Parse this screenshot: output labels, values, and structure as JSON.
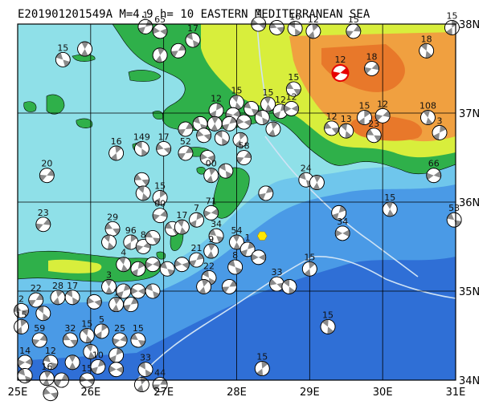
{
  "title": "E201901201549A M=4.9 h= 10 EASTERN MEDITERRANEAN SEA",
  "lon_labels": [
    "25E",
    "26E",
    "27E",
    "28E",
    "29E",
    "30E",
    "31E"
  ],
  "lat_labels": [
    "38N",
    "37N",
    "36N",
    "35N",
    "34N"
  ],
  "bounds": {
    "lon_min": 25,
    "lon_max": 31,
    "lat_min": 34,
    "lat_max": 38
  },
  "colors": {
    "deep_sea": "#2f6fd6",
    "mid_sea": "#4a9ae6",
    "shelf_sea": "#6fc6ec",
    "coast_sea": "#8fe0e8",
    "lowland": "#2fb04a",
    "hill": "#d8ee3c",
    "highland": "#f0a040",
    "mountain": "#e8782a",
    "event_highlight": "#e60000",
    "grid": "#000000",
    "plate_boundary": "#cfe3f5"
  },
  "main_event": {
    "lon": 29.42,
    "lat": 37.45,
    "depth": "12"
  },
  "epicenter_star": {
    "lon": 28.35,
    "lat": 35.62
  },
  "mechanisms": [
    {
      "lon": 25.62,
      "lat": 37.6,
      "depth": "15"
    },
    {
      "lon": 25.92,
      "lat": 37.72,
      "depth": ""
    },
    {
      "lon": 26.75,
      "lat": 37.97,
      "depth": "1"
    },
    {
      "lon": 26.95,
      "lat": 37.92,
      "depth": "65"
    },
    {
      "lon": 27.4,
      "lat": 37.82,
      "depth": "17"
    },
    {
      "lon": 26.95,
      "lat": 37.65,
      "depth": ""
    },
    {
      "lon": 27.2,
      "lat": 37.7,
      "depth": ""
    },
    {
      "lon": 28.3,
      "lat": 38.0,
      "depth": "1"
    },
    {
      "lon": 28.8,
      "lat": 37.95,
      "depth": "16"
    },
    {
      "lon": 29.05,
      "lat": 37.92,
      "depth": "12"
    },
    {
      "lon": 29.6,
      "lat": 37.92,
      "depth": "15"
    },
    {
      "lon": 28.55,
      "lat": 37.96,
      "depth": ""
    },
    {
      "lon": 30.6,
      "lat": 37.7,
      "depth": "18"
    },
    {
      "lon": 30.95,
      "lat": 37.96,
      "depth": "15"
    },
    {
      "lon": 29.85,
      "lat": 37.5,
      "depth": "18"
    },
    {
      "lon": 28.78,
      "lat": 37.27,
      "depth": "15"
    },
    {
      "lon": 28.0,
      "lat": 37.12,
      "depth": "15"
    },
    {
      "lon": 27.72,
      "lat": 37.03,
      "depth": "12"
    },
    {
      "lon": 27.95,
      "lat": 36.98,
      "depth": ""
    },
    {
      "lon": 28.2,
      "lat": 37.05,
      "depth": ""
    },
    {
      "lon": 28.43,
      "lat": 37.1,
      "depth": "15"
    },
    {
      "lon": 28.6,
      "lat": 37.02,
      "depth": "12"
    },
    {
      "lon": 28.75,
      "lat": 37.05,
      "depth": "12"
    },
    {
      "lon": 27.5,
      "lat": 36.88,
      "depth": ""
    },
    {
      "lon": 27.7,
      "lat": 36.88,
      "depth": ""
    },
    {
      "lon": 27.9,
      "lat": 36.88,
      "depth": ""
    },
    {
      "lon": 28.1,
      "lat": 36.9,
      "depth": ""
    },
    {
      "lon": 28.35,
      "lat": 36.95,
      "depth": ""
    },
    {
      "lon": 28.5,
      "lat": 36.82,
      "depth": ""
    },
    {
      "lon": 27.3,
      "lat": 36.82,
      "depth": ""
    },
    {
      "lon": 27.55,
      "lat": 36.75,
      "depth": ""
    },
    {
      "lon": 27.8,
      "lat": 36.72,
      "depth": ""
    },
    {
      "lon": 28.05,
      "lat": 36.7,
      "depth": ""
    },
    {
      "lon": 28.1,
      "lat": 36.5,
      "depth": "58"
    },
    {
      "lon": 29.3,
      "lat": 36.83,
      "depth": "12"
    },
    {
      "lon": 29.5,
      "lat": 36.8,
      "depth": "13"
    },
    {
      "lon": 29.75,
      "lat": 36.95,
      "depth": "15"
    },
    {
      "lon": 30.0,
      "lat": 36.97,
      "depth": "12"
    },
    {
      "lon": 29.88,
      "lat": 36.75,
      "depth": "23"
    },
    {
      "lon": 30.62,
      "lat": 36.95,
      "depth": "108"
    },
    {
      "lon": 30.78,
      "lat": 36.78,
      "depth": "3"
    },
    {
      "lon": 30.7,
      "lat": 36.3,
      "depth": "66"
    },
    {
      "lon": 30.98,
      "lat": 35.8,
      "depth": "53"
    },
    {
      "lon": 30.1,
      "lat": 35.92,
      "depth": "15"
    },
    {
      "lon": 29.4,
      "lat": 35.88,
      "depth": ""
    },
    {
      "lon": 29.45,
      "lat": 35.65,
      "depth": "34"
    },
    {
      "lon": 28.95,
      "lat": 36.25,
      "depth": "24"
    },
    {
      "lon": 29.1,
      "lat": 36.22,
      "depth": ""
    },
    {
      "lon": 28.4,
      "lat": 36.1,
      "depth": ""
    },
    {
      "lon": 27.6,
      "lat": 36.5,
      "depth": ""
    },
    {
      "lon": 27.85,
      "lat": 36.35,
      "depth": ""
    },
    {
      "lon": 27.65,
      "lat": 36.3,
      "depth": "00"
    },
    {
      "lon": 27.3,
      "lat": 36.55,
      "depth": "52"
    },
    {
      "lon": 27.0,
      "lat": 36.6,
      "depth": "17"
    },
    {
      "lon": 26.7,
      "lat": 36.6,
      "depth": "149"
    },
    {
      "lon": 26.35,
      "lat": 36.55,
      "depth": "16"
    },
    {
      "lon": 25.4,
      "lat": 36.3,
      "depth": "20"
    },
    {
      "lon": 26.7,
      "lat": 36.25,
      "depth": ""
    },
    {
      "lon": 26.72,
      "lat": 36.1,
      "depth": ""
    },
    {
      "lon": 26.95,
      "lat": 36.05,
      "depth": "15"
    },
    {
      "lon": 26.95,
      "lat": 35.85,
      "depth": "00"
    },
    {
      "lon": 27.12,
      "lat": 35.7,
      "depth": ""
    },
    {
      "lon": 27.25,
      "lat": 35.72,
      "depth": "17"
    },
    {
      "lon": 27.45,
      "lat": 35.8,
      "depth": "7"
    },
    {
      "lon": 27.65,
      "lat": 35.88,
      "depth": "71"
    },
    {
      "lon": 27.72,
      "lat": 35.62,
      "depth": "34"
    },
    {
      "lon": 28.0,
      "lat": 35.55,
      "depth": "54"
    },
    {
      "lon": 28.15,
      "lat": 35.47,
      "depth": "1"
    },
    {
      "lon": 28.3,
      "lat": 35.38,
      "depth": ""
    },
    {
      "lon": 27.98,
      "lat": 35.27,
      "depth": "8"
    },
    {
      "lon": 27.65,
      "lat": 35.45,
      "depth": "9"
    },
    {
      "lon": 27.45,
      "lat": 35.35,
      "depth": "21"
    },
    {
      "lon": 27.25,
      "lat": 35.3,
      "depth": ""
    },
    {
      "lon": 27.62,
      "lat": 35.15,
      "depth": "22"
    },
    {
      "lon": 27.55,
      "lat": 35.05,
      "depth": ""
    },
    {
      "lon": 27.9,
      "lat": 35.05,
      "depth": ""
    },
    {
      "lon": 28.55,
      "lat": 35.08,
      "depth": "33"
    },
    {
      "lon": 28.72,
      "lat": 35.05,
      "depth": ""
    },
    {
      "lon": 29.0,
      "lat": 35.25,
      "depth": "15"
    },
    {
      "lon": 25.35,
      "lat": 35.75,
      "depth": "23"
    },
    {
      "lon": 26.3,
      "lat": 35.7,
      "depth": "29"
    },
    {
      "lon": 26.25,
      "lat": 35.55,
      "depth": ""
    },
    {
      "lon": 26.55,
      "lat": 35.55,
      "depth": "96"
    },
    {
      "lon": 26.72,
      "lat": 35.5,
      "depth": "8"
    },
    {
      "lon": 26.85,
      "lat": 35.6,
      "depth": ""
    },
    {
      "lon": 26.45,
      "lat": 35.3,
      "depth": "4"
    },
    {
      "lon": 26.65,
      "lat": 35.25,
      "depth": ""
    },
    {
      "lon": 26.85,
      "lat": 35.3,
      "depth": ""
    },
    {
      "lon": 27.05,
      "lat": 35.25,
      "depth": ""
    },
    {
      "lon": 26.25,
      "lat": 35.05,
      "depth": "3"
    },
    {
      "lon": 26.45,
      "lat": 35.0,
      "depth": ""
    },
    {
      "lon": 26.65,
      "lat": 35.0,
      "depth": ""
    },
    {
      "lon": 26.85,
      "lat": 35.0,
      "depth": ""
    },
    {
      "lon": 26.35,
      "lat": 34.85,
      "depth": "1"
    },
    {
      "lon": 26.55,
      "lat": 34.85,
      "depth": ""
    },
    {
      "lon": 26.05,
      "lat": 34.88,
      "depth": ""
    },
    {
      "lon": 25.75,
      "lat": 34.93,
      "depth": "17"
    },
    {
      "lon": 25.55,
      "lat": 34.93,
      "depth": "28"
    },
    {
      "lon": 25.25,
      "lat": 34.9,
      "depth": "22"
    },
    {
      "lon": 25.05,
      "lat": 34.78,
      "depth": "2"
    },
    {
      "lon": 25.35,
      "lat": 34.75,
      "depth": ""
    },
    {
      "lon": 25.05,
      "lat": 34.6,
      "depth": "15"
    },
    {
      "lon": 25.3,
      "lat": 34.45,
      "depth": "59"
    },
    {
      "lon": 25.72,
      "lat": 34.45,
      "depth": "32"
    },
    {
      "lon": 25.95,
      "lat": 34.5,
      "depth": "15"
    },
    {
      "lon": 26.15,
      "lat": 34.55,
      "depth": "5"
    },
    {
      "lon": 26.4,
      "lat": 34.45,
      "depth": "25"
    },
    {
      "lon": 26.65,
      "lat": 34.45,
      "depth": "15"
    },
    {
      "lon": 26.0,
      "lat": 34.32,
      "depth": ""
    },
    {
      "lon": 26.35,
      "lat": 34.28,
      "depth": ""
    },
    {
      "lon": 25.1,
      "lat": 34.2,
      "depth": "14"
    },
    {
      "lon": 25.45,
      "lat": 34.2,
      "depth": "12"
    },
    {
      "lon": 25.75,
      "lat": 34.2,
      "depth": ""
    },
    {
      "lon": 26.1,
      "lat": 34.15,
      "depth": "10"
    },
    {
      "lon": 26.35,
      "lat": 34.12,
      "depth": ""
    },
    {
      "lon": 25.1,
      "lat": 34.05,
      "depth": ""
    },
    {
      "lon": 25.4,
      "lat": 34.02,
      "depth": "16"
    },
    {
      "lon": 25.6,
      "lat": 34.0,
      "depth": ""
    },
    {
      "lon": 25.95,
      "lat": 34.0,
      "depth": "15"
    },
    {
      "lon": 26.75,
      "lat": 34.12,
      "depth": "33"
    },
    {
      "lon": 26.7,
      "lat": 33.95,
      "depth": ""
    },
    {
      "lon": 26.95,
      "lat": 33.95,
      "depth": "44"
    },
    {
      "lon": 25.45,
      "lat": 33.85,
      "depth": ""
    },
    {
      "lon": 29.25,
      "lat": 34.6,
      "depth": "15"
    },
    {
      "lon": 28.35,
      "lat": 34.13,
      "depth": "15"
    }
  ]
}
